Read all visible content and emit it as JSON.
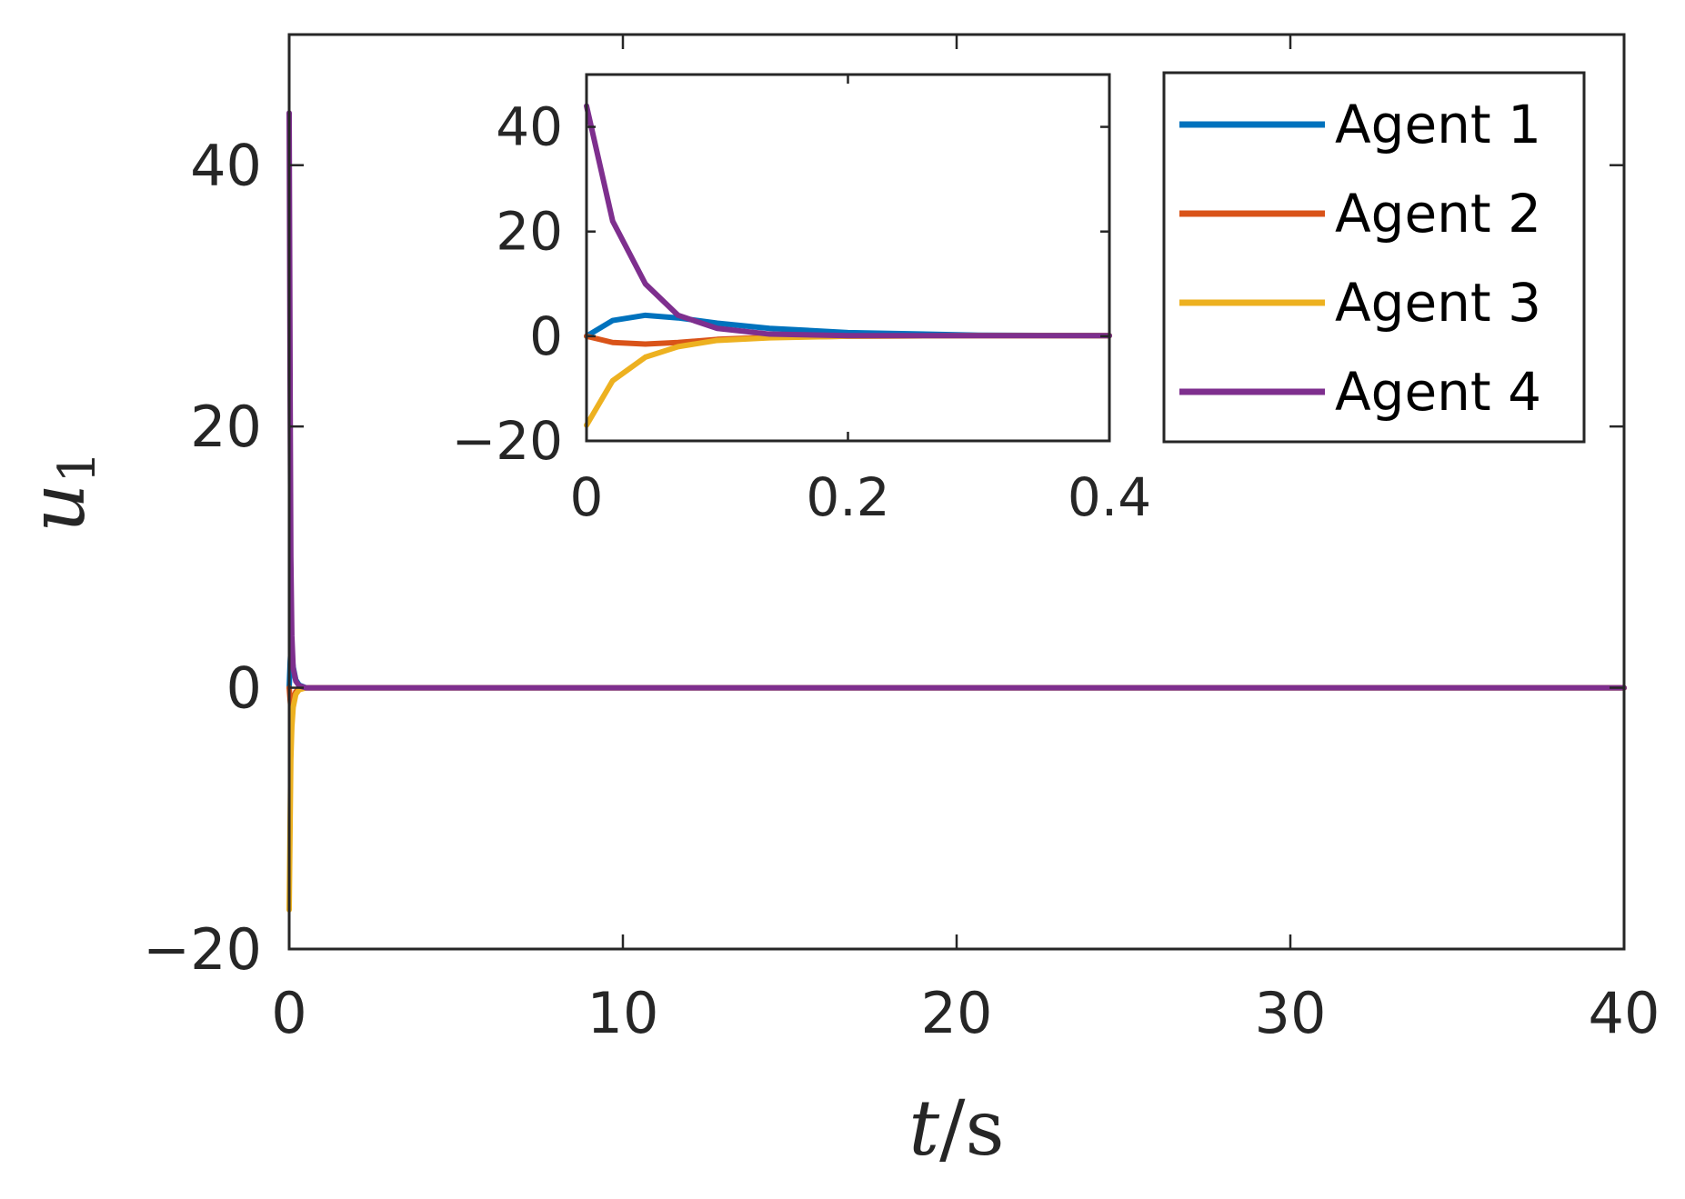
{
  "chart_data": [
    {
      "type": "line",
      "id": "main",
      "xlabel": "t/s",
      "ylabel": "u1",
      "xlim": [
        0,
        40
      ],
      "ylim": [
        -20,
        50
      ],
      "xticks": [
        0,
        10,
        20,
        30,
        40
      ],
      "yticks": [
        -20,
        0,
        20,
        40
      ],
      "xtick_labels": [
        "0",
        "10",
        "20",
        "30",
        "40"
      ],
      "ytick_labels": [
        "−20",
        "0",
        "20",
        "40"
      ],
      "grid": false,
      "series": [
        {
          "name": "Agent 1",
          "color": "#0072BD",
          "x": [
            0,
            0.03,
            0.05,
            0.08,
            0.12,
            0.2,
            0.3,
            0.5,
            1,
            40
          ],
          "y": [
            0,
            2,
            2.8,
            2.5,
            1.6,
            0.6,
            0.2,
            0,
            0,
            0
          ]
        },
        {
          "name": "Agent 2",
          "color": "#D95319",
          "x": [
            0,
            0.03,
            0.05,
            0.08,
            0.12,
            0.2,
            0.3,
            0.5,
            1,
            40
          ],
          "y": [
            0,
            -1,
            -1.5,
            -1.2,
            -0.8,
            -0.3,
            -0.1,
            0,
            0,
            0
          ]
        },
        {
          "name": "Agent 3",
          "color": "#EDB120",
          "x": [
            0,
            0.03,
            0.05,
            0.08,
            0.12,
            0.2,
            0.3,
            0.5,
            1,
            40
          ],
          "y": [
            -17,
            -10,
            -5.5,
            -3,
            -1.5,
            -0.5,
            -0.15,
            0,
            0,
            0
          ]
        },
        {
          "name": "Agent 4",
          "color": "#7E2F8E",
          "x": [
            0,
            0.03,
            0.05,
            0.08,
            0.12,
            0.2,
            0.3,
            0.5,
            1,
            40
          ],
          "y": [
            44,
            22,
            10,
            4,
            1.5,
            0.5,
            0.15,
            0,
            0,
            0
          ]
        }
      ]
    },
    {
      "type": "line",
      "id": "inset",
      "xlim": [
        0,
        0.4
      ],
      "ylim": [
        -20,
        50
      ],
      "xticks": [
        0,
        0.2,
        0.4
      ],
      "yticks": [
        -20,
        0,
        20,
        40
      ],
      "xtick_labels": [
        "0",
        "0.2",
        "0.4"
      ],
      "ytick_labels": [
        "−20",
        "0",
        "20",
        "40"
      ],
      "grid": false,
      "legend": {
        "placement": "right of inset",
        "entries": [
          "Agent 1",
          "Agent 2",
          "Agent 3",
          "Agent 4"
        ]
      },
      "series": [
        {
          "name": "Agent 1",
          "color": "#0072BD",
          "x": [
            0,
            0.02,
            0.045,
            0.07,
            0.1,
            0.14,
            0.2,
            0.3,
            0.4
          ],
          "y": [
            0,
            3,
            4,
            3.5,
            2.5,
            1.5,
            0.7,
            0.2,
            0.1
          ]
        },
        {
          "name": "Agent 2",
          "color": "#D95319",
          "x": [
            0,
            0.02,
            0.045,
            0.07,
            0.1,
            0.14,
            0.2,
            0.3,
            0.4
          ],
          "y": [
            0,
            -1.2,
            -1.5,
            -1.2,
            -0.6,
            -0.2,
            0,
            0.1,
            0.1
          ]
        },
        {
          "name": "Agent 3",
          "color": "#EDB120",
          "x": [
            0,
            0.02,
            0.045,
            0.07,
            0.1,
            0.14,
            0.2,
            0.3,
            0.4
          ],
          "y": [
            -17,
            -8.5,
            -4,
            -2,
            -0.8,
            -0.3,
            0,
            0.1,
            0.1
          ]
        },
        {
          "name": "Agent 4",
          "color": "#7E2F8E",
          "x": [
            0,
            0.02,
            0.045,
            0.07,
            0.1,
            0.14,
            0.2,
            0.3,
            0.4
          ],
          "y": [
            44,
            22,
            10,
            4,
            1.5,
            0.4,
            0.1,
            0.1,
            0.1
          ]
        }
      ]
    }
  ]
}
